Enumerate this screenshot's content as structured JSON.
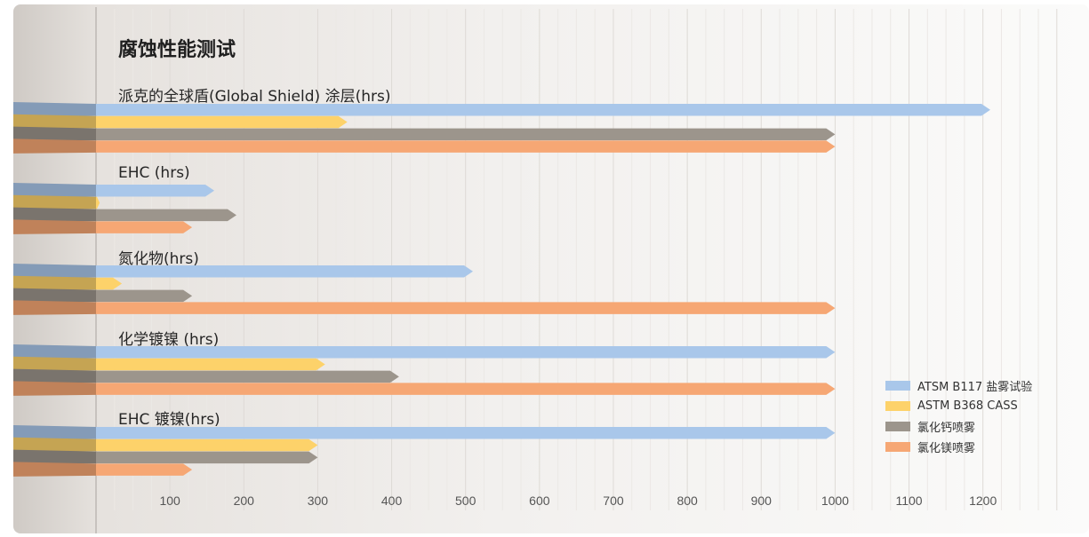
{
  "chart_data": {
    "type": "bar",
    "orientation": "horizontal",
    "title": "腐蚀性能测试",
    "groups": [
      "派克的全球盾(Global Shield) 涂层(hrs)",
      "EHC (hrs)",
      "氮化物(hrs)",
      "化学镀镍 (hrs)",
      "EHC 镀镍(hrs)"
    ],
    "series": [
      {
        "name": "ATSM  B117 盐雾试验",
        "color": "#a9c7ea",
        "values": [
          1210,
          160,
          510,
          1000,
          1000
        ]
      },
      {
        "name": "ASTM B368 CASS",
        "color": "#fdd26a",
        "values": [
          340,
          5,
          35,
          310,
          300
        ]
      },
      {
        "name": "氯化钙喷雾",
        "color": "#9c958c",
        "values": [
          1000,
          190,
          130,
          410,
          300
        ]
      },
      {
        "name": "氯化镁喷雾",
        "color": "#f6a774",
        "values": [
          1000,
          130,
          1000,
          1000,
          130
        ]
      }
    ],
    "x_ticks": [
      "100",
      "200",
      "300",
      "400",
      "500",
      "600",
      "700",
      "800",
      "900",
      "1000",
      "1100",
      "1200"
    ],
    "xlim": [
      0,
      1300
    ],
    "grid": true,
    "legend_position": "bottom-right"
  }
}
